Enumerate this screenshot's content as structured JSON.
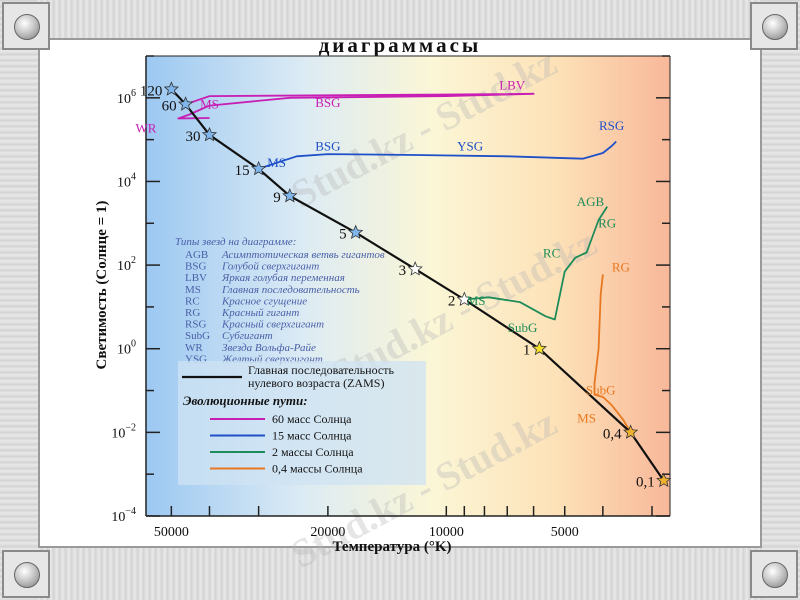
{
  "slide_title": "диаграммасы",
  "chart_data": {
    "type": "scatter",
    "title": "диаграммасы",
    "xlabel": "Температура (°K)",
    "ylabel": "Светимость (Солнце = 1)",
    "x_scale": "log-reversed",
    "y_scale": "log",
    "xlim": [
      58000,
      2700
    ],
    "ylim": [
      0.0001,
      10000000
    ],
    "x_ticks": [
      {
        "value": 50000,
        "label": "50000"
      },
      {
        "value": 20000,
        "label": "20000"
      },
      {
        "value": 10000,
        "label": "10000"
      },
      {
        "value": 5000,
        "label": "5000"
      }
    ],
    "y_ticks": [
      {
        "value": 1000000,
        "base": "10",
        "exp": "6"
      },
      {
        "value": 10000,
        "base": "10",
        "exp": "4"
      },
      {
        "value": 100,
        "base": "10",
        "exp": "2"
      },
      {
        "value": 1,
        "base": "10",
        "exp": "0"
      },
      {
        "value": 0.01,
        "base": "10",
        "exp": "−2"
      },
      {
        "value": 0.0001,
        "base": "10",
        "exp": "−4"
      }
    ],
    "zams_stars": [
      {
        "mass": "120",
        "T": 50000,
        "L": 1600000
      },
      {
        "mass": "60",
        "T": 46000,
        "L": 700000
      },
      {
        "mass": "30",
        "T": 40000,
        "L": 130000
      },
      {
        "mass": "15",
        "T": 30000,
        "L": 20000
      },
      {
        "mass": "9",
        "T": 25000,
        "L": 4500
      },
      {
        "mass": "5",
        "T": 17000,
        "L": 600
      },
      {
        "mass": "3",
        "T": 12000,
        "L": 80
      },
      {
        "mass": "2",
        "T": 9000,
        "L": 15
      },
      {
        "mass": "1",
        "T": 5800,
        "L": 1
      },
      {
        "mass": "0,4",
        "T": 3400,
        "L": 0.01
      },
      {
        "mass": "0,1",
        "T": 2800,
        "L": 0.0007
      }
    ],
    "tracks": [
      {
        "name": "60 масс Солнца",
        "color": "#c81eb4",
        "points": [
          [
            46000,
            700000
          ],
          [
            40000,
            1100000
          ],
          [
            20000,
            1150000
          ],
          [
            10000,
            1200000
          ],
          [
            6000,
            1250000
          ],
          [
            10000,
            1100000
          ],
          [
            25000,
            1000000
          ],
          [
            40000,
            650000
          ],
          [
            45000,
            400000
          ],
          [
            48000,
            320000
          ],
          [
            40000,
            330000
          ]
        ]
      },
      {
        "name": "15 масс Солнца",
        "color": "#1e50c8",
        "points": [
          [
            30000,
            20000
          ],
          [
            27000,
            28000
          ],
          [
            24000,
            40000
          ],
          [
            20000,
            45000
          ],
          [
            12000,
            43000
          ],
          [
            7000,
            40000
          ],
          [
            4500,
            35000
          ],
          [
            4000,
            48000
          ],
          [
            3800,
            70000
          ],
          [
            3700,
            90000
          ]
        ]
      },
      {
        "name": "2 массы Солнца",
        "color": "#1e8c5a",
        "points": [
          [
            9000,
            15
          ],
          [
            7800,
            17
          ],
          [
            6500,
            13
          ],
          [
            5600,
            6
          ],
          [
            5300,
            5
          ],
          [
            5000,
            70
          ],
          [
            4700,
            150
          ],
          [
            4400,
            200
          ],
          [
            4100,
            1200
          ],
          [
            3900,
            2500
          ]
        ]
      },
      {
        "name": "0,4 массы Солнца",
        "color": "#e87820",
        "points": [
          [
            3400,
            0.01
          ],
          [
            3550,
            0.02
          ],
          [
            3800,
            0.045
          ],
          [
            4000,
            0.07
          ],
          [
            4200,
            0.08
          ],
          [
            4200,
            0.15
          ],
          [
            4100,
            1
          ],
          [
            4050,
            20
          ],
          [
            4000,
            60
          ]
        ]
      }
    ],
    "annotations": [
      {
        "text": "LBV",
        "T": 6800,
        "L": 1600000,
        "color": "#c81eb4"
      },
      {
        "text": "MS",
        "T": 40000,
        "L": 550000,
        "color": "#c81eb4"
      },
      {
        "text": "BSG",
        "T": 20000,
        "L": 600000,
        "color": "#c81eb4"
      },
      {
        "text": "WR",
        "T": 58000,
        "L": 150000,
        "color": "#c81eb4"
      },
      {
        "text": "RSG",
        "T": 3800,
        "L": 170000,
        "color": "#1e50c8"
      },
      {
        "text": "BSG",
        "T": 20000,
        "L": 55000,
        "color": "#1e50c8"
      },
      {
        "text": "YSG",
        "T": 8700,
        "L": 55000,
        "color": "#1e50c8"
      },
      {
        "text": "MS",
        "T": 27000,
        "L": 22000,
        "color": "#1e50c8"
      },
      {
        "text": "AGB",
        "T": 4300,
        "L": 2600,
        "color": "#1e8c5a"
      },
      {
        "text": "RG",
        "T": 3900,
        "L": 800,
        "color": "#1e8c5a"
      },
      {
        "text": "RC",
        "T": 5400,
        "L": 150,
        "color": "#1e8c5a"
      },
      {
        "text": "MS",
        "T": 8400,
        "L": 11,
        "color": "#1e8c5a"
      },
      {
        "text": "SubG",
        "T": 6400,
        "L": 2.5,
        "color": "#1e8c5a"
      },
      {
        "text": "RG",
        "T": 3600,
        "L": 70,
        "color": "#e87820"
      },
      {
        "text": "SubG",
        "T": 4050,
        "L": 0.08,
        "color": "#e87820"
      },
      {
        "text": "MS",
        "T": 4400,
        "L": 0.017,
        "color": "#e87820"
      }
    ],
    "types_legend": {
      "title": "Типы звезд на диаграмме:",
      "entries": [
        {
          "abbr": "AGB",
          "desc": "Асимптотическая ветвь гигантов"
        },
        {
          "abbr": "BSG",
          "desc": "Голубой сверхгигант"
        },
        {
          "abbr": "LBV",
          "desc": "Яркая голубая переменная"
        },
        {
          "abbr": "MS",
          "desc": "Главная последовательность"
        },
        {
          "abbr": "RC",
          "desc": "Красное сгущение"
        },
        {
          "abbr": "RG",
          "desc": "Красный гигант"
        },
        {
          "abbr": "RSG",
          "desc": "Красный сверхгигант"
        },
        {
          "abbr": "SubG",
          "desc": "Субгигант"
        },
        {
          "abbr": "WR",
          "desc": "Звезда Вольфа-Райе"
        },
        {
          "abbr": "YSG",
          "desc": "Желтый сверхгигант"
        }
      ]
    },
    "lines_legend": {
      "zams_label_line1": "Главная последовательность",
      "zams_label_line2": "нулевого возраста (ZAMS)",
      "tracks_title": "Эволюционные пути:"
    }
  },
  "watermarks": [
    "Stud.kz - Stud.kz",
    "Stud.kz - Stud.kz",
    "Stud.kz - Stud.kz"
  ]
}
